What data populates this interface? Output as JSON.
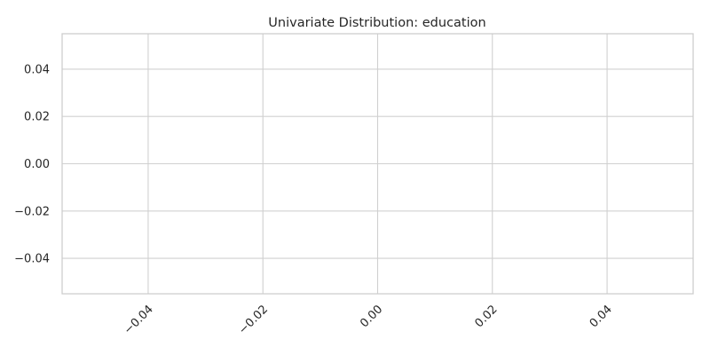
{
  "chart_data": {
    "type": "bar",
    "title": "Univariate Distribution: education",
    "xlabel": "",
    "ylabel": "",
    "x": [],
    "values": [],
    "xlim": [
      -0.055,
      0.055
    ],
    "ylim": [
      -0.055,
      0.055
    ],
    "x_ticks": [
      -0.04,
      -0.02,
      0.0,
      0.02,
      0.04
    ],
    "x_tick_labels": [
      "−0.04",
      "−0.02",
      "0.00",
      "0.02",
      "0.04"
    ],
    "y_ticks": [
      0.04,
      0.02,
      0.0,
      -0.02,
      -0.04
    ],
    "y_tick_labels": [
      "0.04",
      "0.02",
      "0.00",
      "−0.02",
      "−0.04"
    ],
    "x_tick_rotation_deg": -45,
    "grid": true,
    "legend": "none",
    "colors": {
      "grid": "#d0d0d0",
      "frame": "#cccccc",
      "text": "#262626",
      "background": "#ffffff"
    }
  }
}
